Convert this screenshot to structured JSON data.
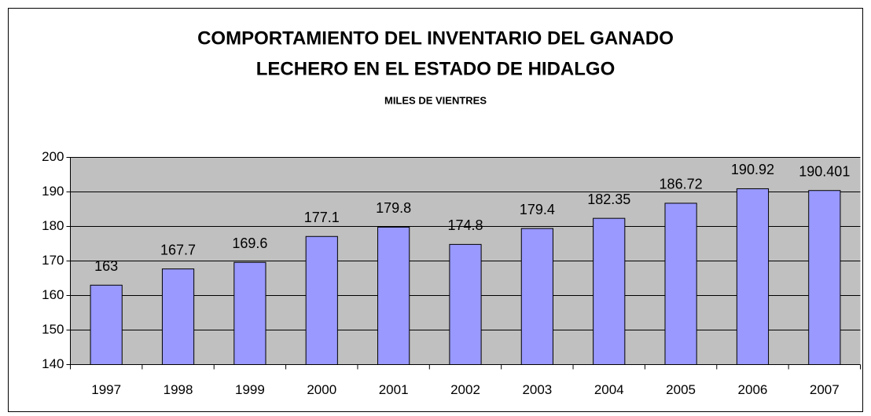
{
  "chart_data": {
    "type": "bar",
    "title": [
      "COMPORTAMIENTO DEL INVENTARIO DEL GANADO",
      "LECHERO EN EL ESTADO DE HIDALGO"
    ],
    "subtitle": "MILES DE VIENTRES",
    "categories": [
      "1997",
      "1998",
      "1999",
      "2000",
      "2001",
      "2002",
      "2003",
      "2004",
      "2005",
      "2006",
      "2007"
    ],
    "values": [
      163,
      167.7,
      169.6,
      177.1,
      179.8,
      174.8,
      179.4,
      182.35,
      186.72,
      190.92,
      190.401
    ],
    "color": "#9999ff",
    "ylim": [
      140,
      200
    ],
    "yticks": [
      140,
      150,
      160,
      170,
      180,
      190,
      200
    ],
    "grid": true
  }
}
